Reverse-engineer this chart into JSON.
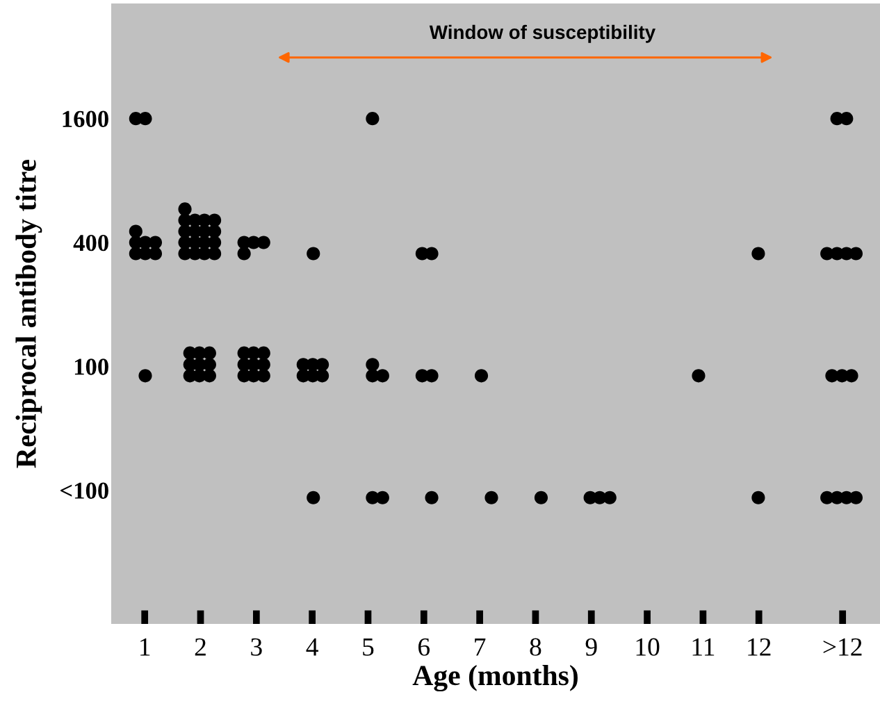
{
  "chart_data": {
    "type": "scatter",
    "xlabel": "Age (months)",
    "ylabel": "Reciprocal antibody titre",
    "log": "y",
    "xlim": [
      0.4,
      14.17
    ],
    "ylim": [
      5.6,
      5800
    ],
    "xticks": [
      1,
      2,
      3,
      4,
      5,
      6,
      7,
      8,
      9,
      10,
      11,
      12,
      {
        "value": 13.5,
        "label": ">12"
      }
    ],
    "yticks": [
      {
        "value": 25,
        "label": "<100"
      },
      100,
      400,
      1600
    ],
    "grid": false,
    "marker": "circle",
    "annotations": [
      "Window of susceptibility"
    ],
    "series": [
      {
        "color": "#000000",
        "x": [
          0.84,
          1.01,
          0.84,
          0.84,
          1.01,
          1.19,
          0.84,
          1.01,
          1.19,
          1.01,
          1.72,
          1.72,
          1.9,
          2.07,
          2.25,
          1.72,
          1.9,
          2.07,
          2.25,
          1.72,
          1.9,
          2.07,
          2.25,
          1.72,
          1.9,
          2.07,
          2.25,
          1.81,
          1.98,
          2.16,
          1.81,
          1.98,
          2.16,
          1.81,
          1.98,
          2.16,
          2.78,
          2.95,
          3.13,
          2.78,
          2.78,
          2.95,
          3.13,
          2.78,
          2.95,
          3.13,
          2.78,
          2.95,
          3.13,
          4.02,
          3.84,
          4.01,
          4.18,
          3.84,
          4.01,
          4.18,
          4.02,
          5.08,
          5.08,
          5.08,
          5.26,
          5.08,
          5.26,
          5.97,
          6.14,
          5.97,
          6.14,
          6.14,
          7.03,
          7.21,
          8.1,
          8.98,
          9.15,
          9.33,
          10.92,
          11.99,
          11.99,
          13.4,
          13.57,
          13.22,
          13.4,
          13.57,
          13.74,
          13.31,
          13.49,
          13.66,
          13.22,
          13.4,
          13.57,
          13.74
        ],
        "values": [
          1600,
          1600,
          453,
          400,
          400,
          400,
          353,
          353,
          353,
          90,
          581,
          513,
          513,
          513,
          513,
          453,
          453,
          453,
          453,
          400,
          400,
          400,
          400,
          353,
          353,
          353,
          353,
          116,
          116,
          116,
          102,
          102,
          102,
          90,
          90,
          90,
          400,
          400,
          400,
          353,
          116,
          116,
          116,
          102,
          102,
          102,
          90,
          90,
          90,
          353,
          102,
          102,
          102,
          90,
          90,
          90,
          23,
          1600,
          102,
          90,
          90,
          23,
          23,
          353,
          353,
          90,
          90,
          23,
          90,
          23,
          23,
          23,
          23,
          23,
          90,
          353,
          23,
          1600,
          1600,
          353,
          353,
          353,
          353,
          90,
          90,
          90,
          23,
          23,
          23,
          23
        ]
      }
    ]
  }
}
